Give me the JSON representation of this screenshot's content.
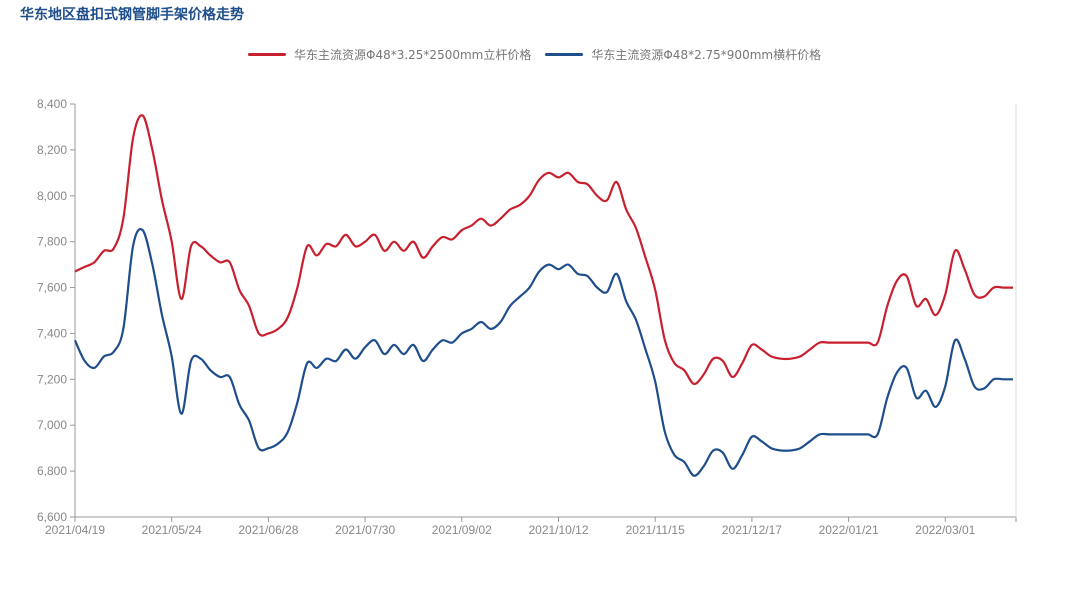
{
  "chart_data": {
    "type": "line",
    "title": "华东地区盘扣式钢管脚手架价格走势",
    "xlabel": "",
    "ylabel": "",
    "ylim": [
      6600,
      8400
    ],
    "yticks": [
      6600,
      6800,
      7000,
      7200,
      7400,
      7600,
      7800,
      8000,
      8200,
      8400
    ],
    "ytick_labels": [
      "6,600",
      "6,800",
      "7,000",
      "7,200",
      "7,400",
      "7,600",
      "7,800",
      "8,000",
      "8,200",
      "8,400"
    ],
    "xtick_labels": [
      "2021/04/19",
      "2021/05/24",
      "2021/06/28",
      "2021/07/30",
      "2021/09/02",
      "2021/10/12",
      "2021/11/15",
      "2021/12/17",
      "2022/01/21",
      "2022/03/01"
    ],
    "grid": false,
    "legend_position": "top",
    "series": [
      {
        "name": "华东主流资源Φ48*3.25*2500mm立杆价格",
        "color": "#c8202f",
        "values": [
          7670,
          7690,
          7710,
          7760,
          7770,
          7900,
          8250,
          8350,
          8200,
          7980,
          7800,
          7550,
          7780,
          7780,
          7740,
          7710,
          7710,
          7590,
          7520,
          7400,
          7400,
          7420,
          7470,
          7600,
          7780,
          7740,
          7790,
          7780,
          7830,
          7780,
          7800,
          7830,
          7760,
          7800,
          7760,
          7800,
          7730,
          7780,
          7820,
          7810,
          7850,
          7870,
          7900,
          7870,
          7900,
          7940,
          7960,
          8000,
          8070,
          8100,
          8080,
          8100,
          8060,
          8050,
          8000,
          7980,
          8060,
          7940,
          7860,
          7730,
          7590,
          7370,
          7270,
          7240,
          7180,
          7220,
          7290,
          7280,
          7210,
          7270,
          7350,
          7330,
          7300,
          7290,
          7290,
          7300,
          7330,
          7360,
          7360,
          7360,
          7360,
          7360,
          7360,
          7360,
          7520,
          7630,
          7650,
          7520,
          7550,
          7480,
          7570,
          7760,
          7680,
          7570,
          7560,
          7600,
          7600,
          7600
        ]
      },
      {
        "name": "华东主流资源Φ48*2.75*900mm横杆价格",
        "color": "#1f4e8c",
        "values": [
          7370,
          7280,
          7250,
          7300,
          7320,
          7420,
          7780,
          7850,
          7700,
          7480,
          7300,
          7050,
          7280,
          7290,
          7240,
          7210,
          7210,
          7090,
          7020,
          6900,
          6900,
          6920,
          6970,
          7100,
          7270,
          7250,
          7290,
          7280,
          7330,
          7290,
          7340,
          7370,
          7310,
          7350,
          7310,
          7350,
          7280,
          7330,
          7370,
          7360,
          7400,
          7420,
          7450,
          7420,
          7450,
          7520,
          7560,
          7600,
          7670,
          7700,
          7680,
          7700,
          7660,
          7650,
          7600,
          7580,
          7660,
          7540,
          7460,
          7330,
          7190,
          6970,
          6870,
          6840,
          6780,
          6820,
          6890,
          6880,
          6810,
          6870,
          6950,
          6930,
          6900,
          6890,
          6890,
          6900,
          6930,
          6960,
          6960,
          6960,
          6960,
          6960,
          6960,
          6960,
          7120,
          7230,
          7250,
          7120,
          7150,
          7080,
          7170,
          7370,
          7290,
          7170,
          7160,
          7200,
          7200,
          7200
        ]
      }
    ]
  }
}
